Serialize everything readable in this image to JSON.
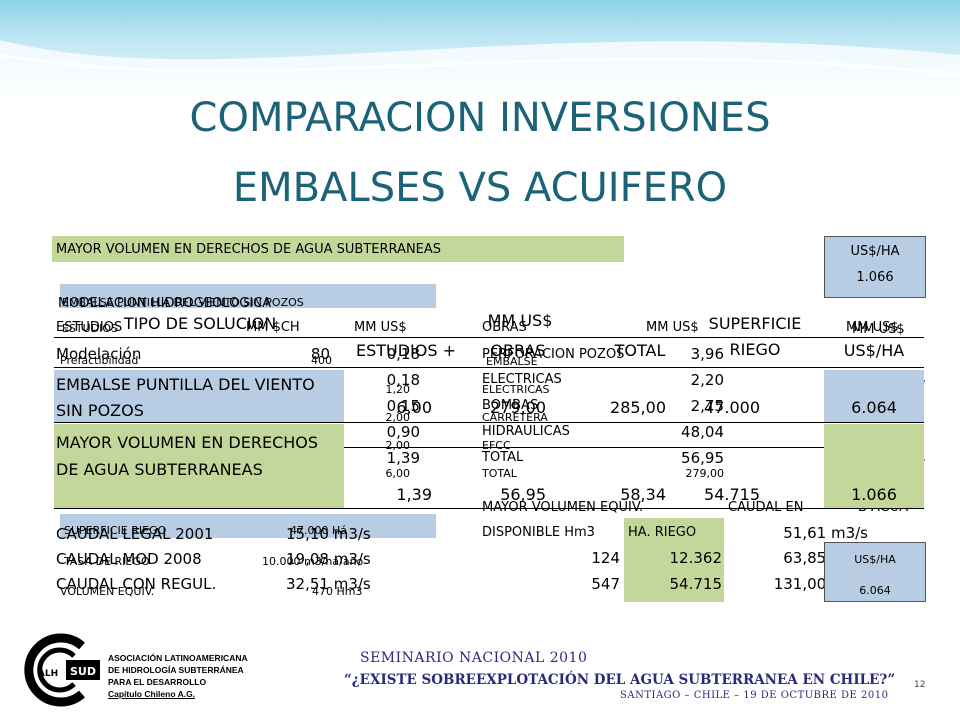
{
  "title": {
    "line1": "COMPARACION INVERSIONES",
    "line2": "EMBALSES VS ACUIFERO"
  },
  "back": {
    "mayor_volumen_label": "MAYOR VOLUMEN EN DERECHOS DE AGUA SUBTERRANEAS",
    "us_ha_header": "US$/HA",
    "us_ha_value": "1.066",
    "embalse_pozos_label": "EMBALSE PUNTILLA DEL VIENTO SIN POZOS",
    "modelacion_label": "MODELACION HIDROGEOLOGICA",
    "estudios": "ESTUDIOS",
    "mm_ch": "MM $CH",
    "mm_us_1": "MM US$",
    "obras": "OBRAS",
    "mm_us_2": "MM US$",
    "mm_us_3": "MM US$",
    "mm_us_4": "MM US$",
    "rows": [
      {
        "label": "Modelación",
        "v1": "80",
        "v2": "0,18",
        "obra": "PERFORACION POZOS",
        "v3": "3,96"
      },
      {
        "label": "",
        "v1": "",
        "v2": "0,18",
        "obra": "ELECTRICAS",
        "v3": "2,20"
      },
      {
        "label": "",
        "v1": "",
        "v2": "0,15",
        "obra": "BOMBAS",
        "v3": "2,75"
      },
      {
        "label": "",
        "v1": "",
        "v2": "0,90",
        "obra": "HIDRAULICAS",
        "v3": "48,04"
      },
      {
        "label": "",
        "v1": "",
        "v2": "1,39",
        "obra": "TOTAL",
        "v3": "56,95"
      }
    ],
    "prefact": "Prefactibilidad",
    "prefact_val": "400",
    "small_vals": [
      "1,20",
      "2,00",
      "2,00",
      "6,00"
    ],
    "small_obras": [
      "EMBALSE",
      "ELECTRICAS",
      "CARRETERA",
      "EFCC",
      "TOTAL"
    ],
    "small_total": "279,00",
    "plus_sign": "+",
    "right_fragment_1": "4",
    "right_fragment_2": "0",
    "bottom_left": [
      {
        "label": "CAUDAL LEGAL 2001",
        "value": "15,10 m3/s"
      },
      {
        "label": "CAUDAL MOD 2008",
        "value": "19,08 m3/s"
      },
      {
        "label": "CAUDAL CON REGUL.",
        "value": "32,51 m3/s"
      }
    ],
    "superficie_riego": "SUPERFICIE RIEGO",
    "superficie_riego_val": "47.000 Há",
    "tasa_riego": "TASA DE RIEGO",
    "tasa_riego_val": "10.000 m3/ha/año",
    "volumen_equiv": "VOLUMEN EQUIV.",
    "volumen_equiv_val": "470 Hm3",
    "mayor_vol_equiv": "MAYOR VOLUMEN EQUIV.",
    "caudal_en": "CAUDAL EN",
    "b_agua": "B AGUA",
    "disponible": "DISPONIBLE Hm3",
    "ha_riego": "HA. RIEGO",
    "mid_rows": [
      {
        "a": "",
        "b": "",
        "c": "51,61 m3/s"
      },
      {
        "a": "124",
        "b": "12.362",
        "c": "63,85 m3/s"
      },
      {
        "a": "547",
        "b": "54.715",
        "c": "131,00 m3/s"
      }
    ],
    "us_ha_small": "US$/HA",
    "us_ha_small_val": "6.064"
  },
  "front": {
    "headers": {
      "tipo": "TIPO DE SOLUCION",
      "mm_us": "MM US$",
      "estudios": "ESTUDIOS +",
      "obras": "OBRAS",
      "total": "TOTAL",
      "superficie": "SUPERFICIE RIEGO",
      "us_ha": "US$/HA"
    },
    "row1": {
      "label": "EMBALSE PUNTILLA DEL VIENTO SIN POZOS",
      "estudios": "6,00",
      "obras": "279,00",
      "total": "285,00",
      "superficie": "47.000",
      "us_ha": "6.064"
    },
    "row2": {
      "label": "MAYOR VOLUMEN EN DERECHOS DE AGUA SUBTERRANEAS",
      "estudios": "1,39",
      "obras": "56,95",
      "total": "58,34",
      "superficie": "54.715",
      "us_ha": "1.066"
    }
  },
  "footer": {
    "org_line1": "ASOCIACIÓN LATINOAMERICANA",
    "org_line2": "DE HIDROLOGÍA SUBTERRÁNEA",
    "org_line3": "PARA EL DESARROLLO",
    "org_line4": "Capítulo Chileno A.G.",
    "logo_text": "ALHSUD",
    "seminar": "SEMINARIO NACIONAL 2010",
    "question": "“¿EXISTE SOBREEXPLOTACIÓN DEL AGUA SUBTERRANEA EN CHILE?”",
    "place_date": "SANTIAGO – CHILE – 19 DE OCTUBRE DE 2010",
    "page": "12"
  },
  "colors": {
    "title": "#1c6378",
    "green": "#c4d79b",
    "blue": "#b8cce4",
    "navy": "#2b2a7a"
  }
}
